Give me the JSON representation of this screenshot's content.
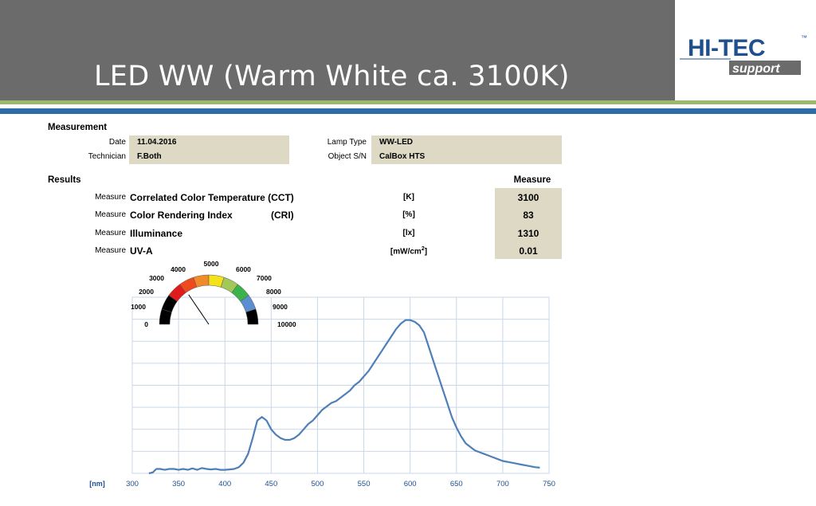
{
  "slide": {
    "title": "LED WW (Warm White ca. 3100K)"
  },
  "logo": {
    "brand": "HI-TEC",
    "sub": "support",
    "tm": "™"
  },
  "measurement": {
    "heading": "Measurement",
    "date_label": "Date",
    "date_value": "11.04.2016",
    "technician_label": "Technician",
    "technician_value": "F.Both",
    "lamp_type_label": "Lamp Type",
    "lamp_type_value": "WW-LED",
    "object_sn_label": "Object S/N",
    "object_sn_value": "CalBox HTS"
  },
  "results": {
    "heading": "Results",
    "measure_heading": "Measure",
    "rows": [
      {
        "prefix": "Measure",
        "name": "Correlated Color Temperature (CCT)",
        "abbr": "",
        "unit": "[K]",
        "value": "3100"
      },
      {
        "prefix": "Measure",
        "name": "Color Rendering Index",
        "abbr": "(CRI)",
        "unit": "[%]",
        "value": "83"
      },
      {
        "prefix": "Measure",
        "name": "Illuminance",
        "abbr": "",
        "unit": "[lx]",
        "value": "1310"
      },
      {
        "prefix": "Measure",
        "name": "UV-A",
        "abbr": "",
        "unit_base": "[mW/cm",
        "unit_sup": "2",
        "unit_close": "]",
        "value": "0.01"
      }
    ]
  },
  "gauge": {
    "labels": [
      "0",
      "1000",
      "2000",
      "3000",
      "4000",
      "5000",
      "6000",
      "7000",
      "8000",
      "9000",
      "10000"
    ],
    "value": 3100,
    "min": 0,
    "max": 10000,
    "segment_colors": [
      "#000000",
      "#e11b1b",
      "#ef4a1f",
      "#f08a2a",
      "#f4e21b",
      "#a3c85a",
      "#3cb34a",
      "#5b8fd0",
      "#000000"
    ]
  },
  "chart_data": {
    "type": "line",
    "title": "",
    "xlabel": "[nm]",
    "ylabel": "",
    "xlim": [
      300,
      750
    ],
    "ylim": [
      0,
      1
    ],
    "x_ticks": [
      300,
      350,
      400,
      450,
      500,
      550,
      600,
      650,
      700,
      750
    ],
    "grid": true,
    "line_color": "#4f7fb8",
    "series": [
      {
        "x": [
          318,
          322,
          326,
          330,
          335,
          340,
          345,
          350,
          355,
          360,
          365,
          370,
          375,
          380,
          385,
          390,
          395,
          400,
          405,
          410,
          415,
          420,
          425,
          430,
          435,
          440,
          445,
          450,
          455,
          460,
          465,
          470,
          475,
          480,
          485,
          490,
          495,
          500,
          505,
          510,
          515,
          520,
          525,
          530,
          535,
          540,
          545,
          550,
          555,
          560,
          565,
          570,
          575,
          580,
          585,
          590,
          595,
          600,
          605,
          610,
          615,
          620,
          625,
          630,
          635,
          640,
          645,
          650,
          655,
          660,
          665,
          670,
          675,
          680,
          685,
          690,
          695,
          700,
          705,
          710,
          715,
          720,
          725,
          730,
          735,
          740
        ],
        "y": [
          0.0,
          0.005,
          0.025,
          0.025,
          0.02,
          0.025,
          0.025,
          0.02,
          0.025,
          0.02,
          0.028,
          0.02,
          0.03,
          0.025,
          0.022,
          0.025,
          0.02,
          0.02,
          0.022,
          0.025,
          0.035,
          0.06,
          0.11,
          0.2,
          0.3,
          0.32,
          0.3,
          0.25,
          0.22,
          0.2,
          0.19,
          0.19,
          0.2,
          0.22,
          0.25,
          0.28,
          0.3,
          0.33,
          0.36,
          0.38,
          0.4,
          0.41,
          0.43,
          0.45,
          0.47,
          0.5,
          0.52,
          0.55,
          0.58,
          0.62,
          0.66,
          0.7,
          0.74,
          0.78,
          0.82,
          0.85,
          0.87,
          0.87,
          0.86,
          0.84,
          0.8,
          0.72,
          0.64,
          0.56,
          0.48,
          0.4,
          0.32,
          0.26,
          0.21,
          0.17,
          0.15,
          0.13,
          0.12,
          0.11,
          0.1,
          0.09,
          0.08,
          0.07,
          0.065,
          0.06,
          0.055,
          0.05,
          0.045,
          0.04,
          0.035,
          0.032
        ]
      }
    ]
  }
}
